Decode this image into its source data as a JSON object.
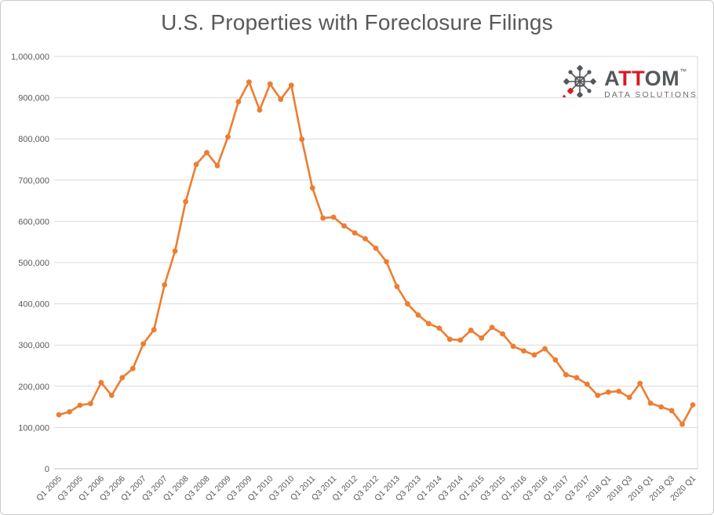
{
  "title": "U.S. Properties with Foreclosure Filings",
  "logo": {
    "part_a": "A",
    "part_tt": "TT",
    "part_om": "OM",
    "trademark": "™",
    "subtitle": "DATA SOLUTIONS"
  },
  "colors": {
    "title": "#595959",
    "axis_labels": "#595959",
    "gridline": "#d9d9d9",
    "baseline": "#c6c6c6",
    "series": "#ED7D31",
    "logo_dark": "#54585a",
    "logo_red": "#d71920"
  },
  "chart_data": {
    "type": "line",
    "title": "U.S. Properties with Foreclosure Filings",
    "xlabel": "",
    "ylabel": "",
    "ylim": [
      0,
      1000000
    ],
    "y_tick_step": 100000,
    "y_tick_labels": [
      "0",
      "100,000",
      "200,000",
      "300,000",
      "400,000",
      "500,000",
      "600,000",
      "700,000",
      "800,000",
      "900,000",
      "1,000,000"
    ],
    "grid": "horizontal",
    "legend": "none",
    "marker": "circle",
    "series_name": "Properties with foreclosure filings",
    "categories": [
      "Q1 2005",
      "Q2 2005",
      "Q3 2005",
      "Q4 2005",
      "Q1 2006",
      "Q2 2006",
      "Q3 2006",
      "Q4 2006",
      "Q1 2007",
      "Q2 2007",
      "Q3 2007",
      "Q4 2007",
      "Q1 2008",
      "Q2 2008",
      "Q3 2008",
      "Q4 2008",
      "Q1 2009",
      "Q2 2009",
      "Q3 2009",
      "Q4 2009",
      "Q1 2010",
      "Q2 2010",
      "Q3 2010",
      "Q4 2010",
      "Q1 2011",
      "Q2 2011",
      "Q3 2011",
      "Q4 2011",
      "Q1 2012",
      "Q2 2012",
      "Q3 2012",
      "Q4 2012",
      "Q1 2013",
      "Q2 2013",
      "Q3 2013",
      "Q4 2013",
      "Q1 2014",
      "Q2 2014",
      "Q3 2014",
      "Q4 2014",
      "Q1 2015",
      "Q2 2015",
      "Q3 2015",
      "Q4 2015",
      "Q1 2016",
      "Q2 2016",
      "Q3 2016",
      "Q4 2016",
      "Q1 2017",
      "Q2 2017",
      "Q3 2017",
      "Q4 2017",
      "2018 Q1",
      "2018 Q2",
      "2018 Q3",
      "2018 Q4",
      "2019 Q1",
      "2019 Q2",
      "2019 Q3",
      "2019 Q4",
      "2020 Q1"
    ],
    "values": [
      131000,
      138000,
      154000,
      158000,
      209000,
      178000,
      221000,
      243000,
      303000,
      337000,
      446000,
      528000,
      648000,
      738000,
      767000,
      735000,
      805000,
      890000,
      938000,
      870000,
      933000,
      896000,
      930000,
      799000,
      681000,
      608000,
      610000,
      589000,
      572000,
      558000,
      535000,
      502000,
      442000,
      400000,
      373000,
      352000,
      341000,
      314000,
      312000,
      336000,
      317000,
      343000,
      327000,
      297000,
      286000,
      276000,
      291000,
      264000,
      228000,
      221000,
      205000,
      178000,
      186000,
      188000,
      173000,
      207000,
      159000,
      150000,
      141000,
      108000,
      155000
    ],
    "x_tick_labels": [
      "Q1 2005",
      "Q3 2005",
      "Q1 2006",
      "Q3 2006",
      "Q1 2007",
      "Q3 2007",
      "Q1 2008",
      "Q3 2008",
      "Q1 2009",
      "Q3 2009",
      "Q1 2010",
      "Q3 2010",
      "Q1 2011",
      "Q3 2011",
      "Q1 2012",
      "Q3 2012",
      "Q1 2013",
      "Q3 2013",
      "Q1 2014",
      "Q3 2014",
      "Q1 2015",
      "Q3 2015",
      "Q1 2016",
      "Q3 2016",
      "Q1 2017",
      "Q3 2017",
      "2018 Q1",
      "2018 Q3",
      "2019 Q1",
      "2019 Q3",
      "2020 Q1"
    ],
    "x_tick_every": 2
  }
}
